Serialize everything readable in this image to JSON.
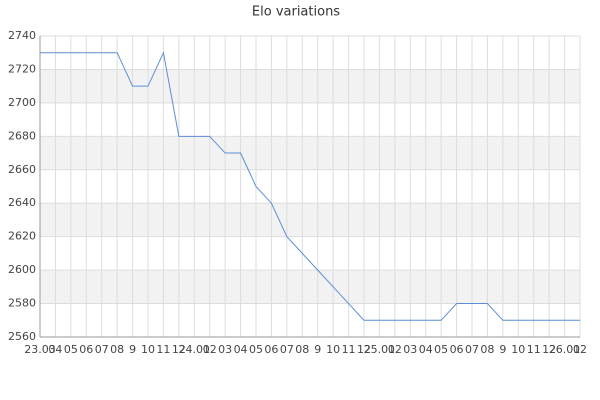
{
  "chart_data": {
    "type": "line",
    "title": "Elo variations",
    "categories": [
      "23.03",
      "04",
      "05",
      "06",
      "07",
      "08",
      "9",
      "10",
      "11",
      "12",
      "24.01",
      "02",
      "03",
      "04",
      "05",
      "06",
      "07",
      "08",
      "9",
      "10",
      "11",
      "12",
      "25.01",
      "02",
      "03",
      "04",
      "05",
      "06",
      "07",
      "08",
      "9",
      "10",
      "11",
      "12",
      "26.01",
      "02"
    ],
    "series": [
      {
        "name": "Elo",
        "color": "#5b8ed6",
        "values": [
          2730,
          2730,
          2730,
          2730,
          2730,
          2730,
          2710,
          2710,
          2730,
          2680,
          2680,
          2680,
          2670,
          2670,
          2650,
          2640,
          2620,
          2610,
          2600,
          2590,
          2580,
          2570,
          2570,
          2570,
          2570,
          2570,
          2570,
          2580,
          2580,
          2580,
          2570,
          2570,
          2570,
          2570,
          2570,
          2570
        ]
      }
    ],
    "ylim": [
      2560,
      2740
    ],
    "yticks": [
      2560,
      2580,
      2600,
      2620,
      2640,
      2660,
      2680,
      2700,
      2720,
      2740
    ],
    "grid": true,
    "band_color": "#f2f2f2"
  }
}
